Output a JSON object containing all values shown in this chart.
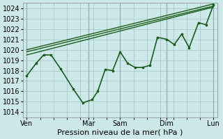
{
  "title": "",
  "xlabel": "Pression niveau de la mer( hPa )",
  "ylabel": "",
  "background_color": "#cce8e8",
  "grid_color": "#aacccc",
  "line_color": "#1a5c1a",
  "ylim": [
    1013.5,
    1024.5
  ],
  "yticks": [
    1014,
    1015,
    1016,
    1017,
    1018,
    1019,
    1020,
    1021,
    1022,
    1023,
    1024
  ],
  "xlabel_fontsize": 8,
  "tick_fontsize": 7,
  "day_labels": [
    "Ven",
    "Mar",
    "Sam",
    "Dim",
    "Lun"
  ],
  "day_positions": [
    0.0,
    0.33,
    0.5,
    0.75,
    1.0
  ],
  "series": [
    {
      "x": [
        0.0,
        1.0
      ],
      "y": [
        1020.0,
        1024.4
      ],
      "marker": false,
      "lw": 1.0
    },
    {
      "x": [
        0.0,
        1.0
      ],
      "y": [
        1019.8,
        1024.2
      ],
      "marker": false,
      "lw": 1.0
    },
    {
      "x": [
        0.0,
        1.0
      ],
      "y": [
        1019.5,
        1024.1
      ],
      "marker": false,
      "lw": 1.0
    },
    {
      "x": [
        0.0,
        0.05,
        0.09,
        0.13,
        0.18,
        0.25,
        0.3,
        0.35,
        0.38,
        0.42,
        0.46,
        0.5,
        0.54,
        0.58,
        0.62,
        0.66,
        0.7,
        0.75,
        0.79,
        0.83,
        0.87,
        0.92,
        0.96,
        1.0
      ],
      "y": [
        1017.5,
        1018.7,
        1019.5,
        1019.5,
        1018.2,
        1016.2,
        1014.9,
        1015.2,
        1016.0,
        1018.1,
        1018.0,
        1019.8,
        1018.7,
        1018.3,
        1018.3,
        1018.5,
        1021.2,
        1021.0,
        1020.5,
        1021.5,
        1020.2,
        1022.6,
        1022.4,
        1024.3
      ],
      "marker": true,
      "lw": 1.2
    }
  ]
}
